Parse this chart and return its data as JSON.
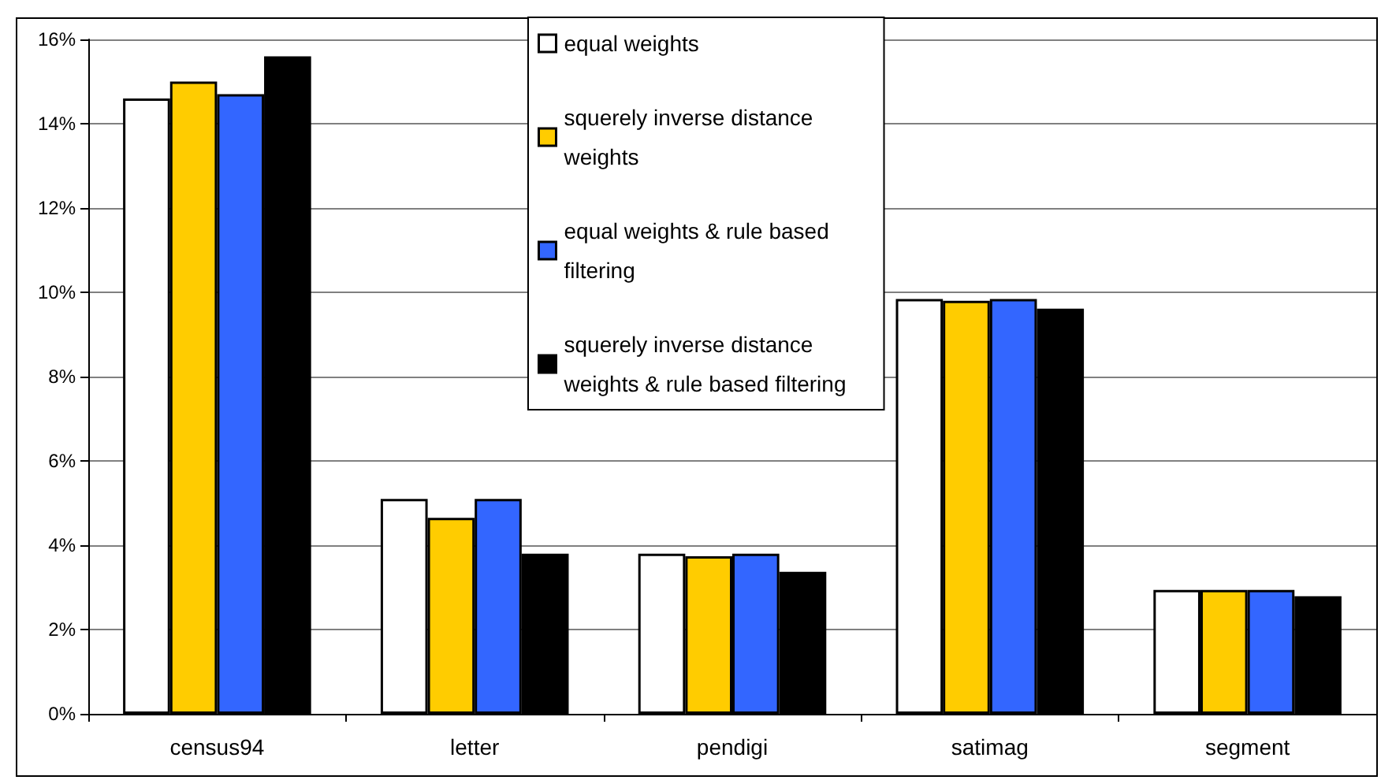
{
  "chart_data": {
    "type": "bar",
    "categories": [
      "census94",
      "letter",
      "pendigi",
      "satimag",
      "segment"
    ],
    "series": [
      {
        "name": "equal weights",
        "color": "#ffffff",
        "values": [
          14.6,
          5.1,
          3.8,
          9.84,
          2.94
        ]
      },
      {
        "name": "squerely inverse distance weights",
        "color": "#ffcc00",
        "values": [
          15.0,
          4.65,
          3.74,
          9.8,
          2.94
        ]
      },
      {
        "name": "equal weights & rule based filtering",
        "color": "#3366ff",
        "values": [
          14.7,
          5.1,
          3.8,
          9.84,
          2.94
        ]
      },
      {
        "name": "squerely inverse distance weights & rule based filtering",
        "color": "#000000",
        "values": [
          15.6,
          3.8,
          3.37,
          9.61,
          2.79
        ]
      }
    ],
    "ylim": [
      0,
      16
    ],
    "yticks": [
      {
        "value": 0,
        "label": "0%"
      },
      {
        "value": 2,
        "label": "2%"
      },
      {
        "value": 4,
        "label": "4%"
      },
      {
        "value": 6,
        "label": "6%"
      },
      {
        "value": 8,
        "label": "8%"
      },
      {
        "value": 10,
        "label": "10%"
      },
      {
        "value": 12,
        "label": "12%"
      },
      {
        "value": 14,
        "label": "14%"
      },
      {
        "value": 16,
        "label": "16%"
      }
    ],
    "grid": "y",
    "legend": "top"
  }
}
